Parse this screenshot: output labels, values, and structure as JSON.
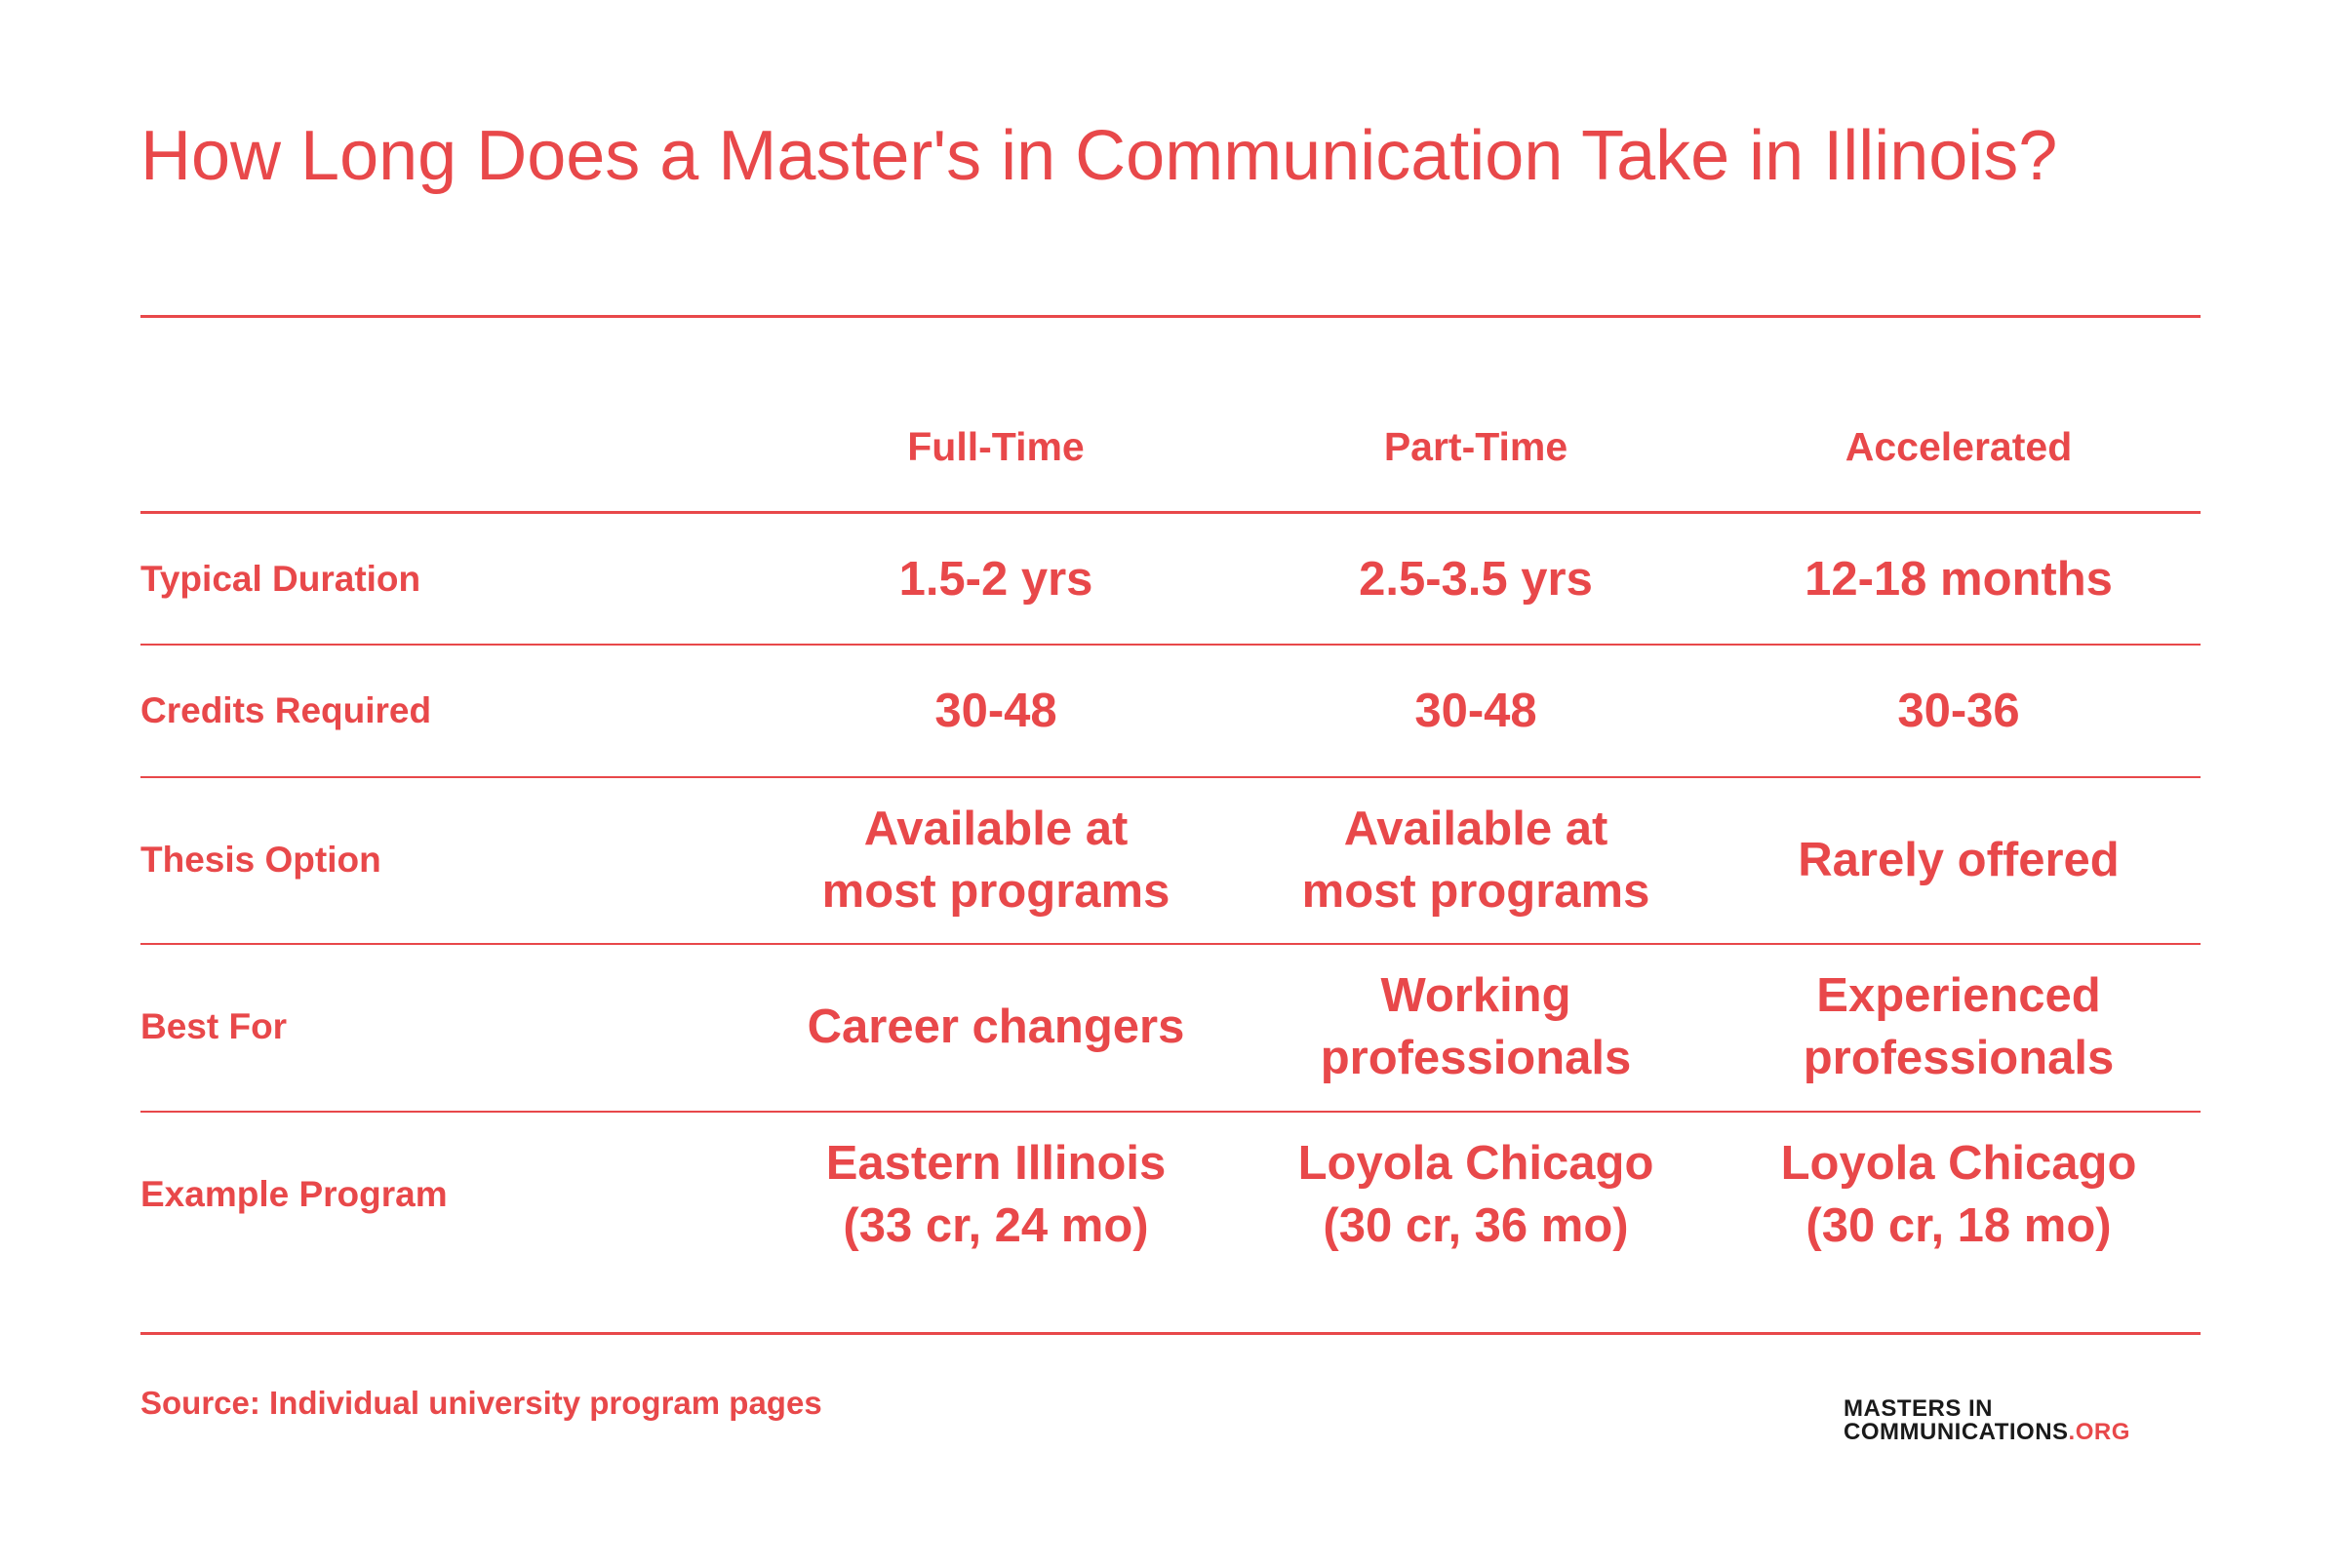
{
  "header": {
    "title": "How Long Does a Master's in Communication Take in Illinois?"
  },
  "table": {
    "columns": [
      "Full-Time",
      "Part-Time",
      "Accelerated"
    ],
    "rows": [
      {
        "label": "Typical Duration",
        "cells": [
          [
            "1.5-2 yrs"
          ],
          [
            "2.5-3.5 yrs"
          ],
          [
            "12-18 months"
          ]
        ]
      },
      {
        "label": "Credits Required",
        "cells": [
          [
            "30-48"
          ],
          [
            "30-48"
          ],
          [
            "30-36"
          ]
        ]
      },
      {
        "label": "Thesis Option",
        "cells": [
          [
            "Available at",
            "most programs"
          ],
          [
            "Available at",
            "most programs"
          ],
          [
            "Rarely offered"
          ]
        ]
      },
      {
        "label": "Best For",
        "cells": [
          [
            "Career changers"
          ],
          [
            "Working",
            "professionals"
          ],
          [
            "Experienced",
            "professionals"
          ]
        ]
      },
      {
        "label": "Example Program",
        "cells": [
          [
            "Eastern Illinois",
            "(33 cr, 24 mo)"
          ],
          [
            "Loyola Chicago",
            "(30 cr, 36 mo)"
          ],
          [
            "Loyola Chicago",
            "(30 cr, 18 mo)"
          ]
        ]
      }
    ]
  },
  "footer": {
    "source": "Source: Individual university program pages",
    "logo": {
      "line1": "MASTERS IN",
      "line2": "COMMUNICATIONS",
      "suffix": ".ORG"
    }
  }
}
